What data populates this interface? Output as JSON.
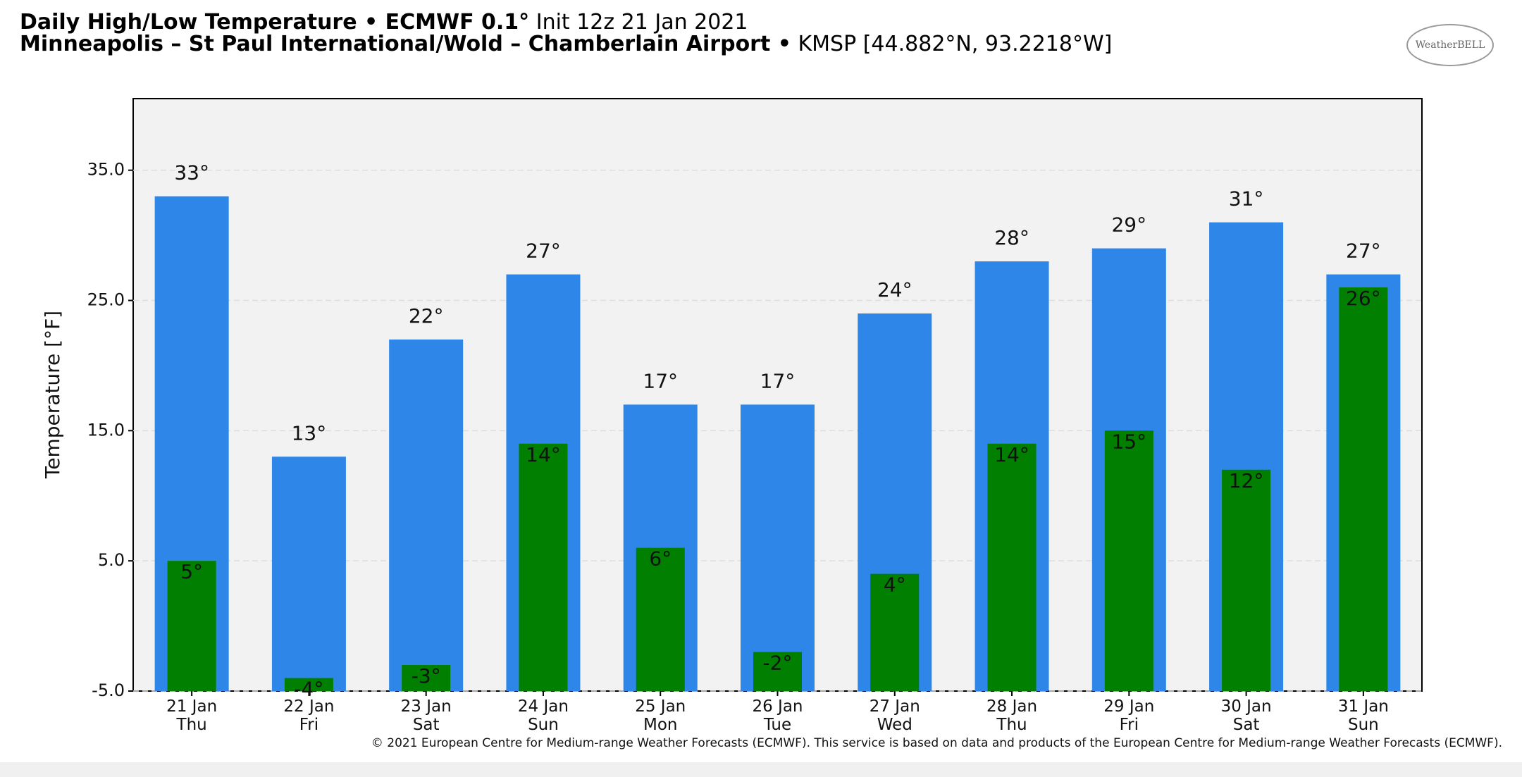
{
  "chart_data": {
    "type": "bar",
    "title": "Daily High/Low Temperature • ECMWF 0.1°",
    "init": "Init 12z 21 Jan 2021",
    "location": "Minneapolis – St Paul International/Wold – Chamberlain Airport •",
    "station": "KMSP [44.882°N, 93.2218°W]",
    "logo": "WeatherBELL",
    "ylabel": "Temperature [°F]",
    "copyright": "© 2021 European Centre for Medium-range Weather Forecasts (ECMWF). This service is based on data and products of the European Centre for Medium-range Weather Forecasts (ECMWF).",
    "categories": [
      "21 Jan\nThu",
      "22 Jan\nFri",
      "23 Jan\nSat",
      "24 Jan\nSun",
      "25 Jan\nMon",
      "26 Jan\nTue",
      "27 Jan\nWed",
      "28 Jan\nThu",
      "29 Jan\nFri",
      "30 Jan\nSat",
      "31 Jan\nSun"
    ],
    "series": [
      {
        "name": "High",
        "color": "#2e86e8",
        "values": [
          33,
          13,
          22,
          27,
          17,
          17,
          24,
          28,
          29,
          31,
          27
        ],
        "value_labels": [
          "33°",
          "13°",
          "22°",
          "27°",
          "17°",
          "17°",
          "24°",
          "28°",
          "29°",
          "31°",
          "27°"
        ]
      },
      {
        "name": "Low",
        "color": "#007f00",
        "values": [
          5,
          -4,
          -3,
          14,
          6,
          -2,
          4,
          14,
          15,
          12,
          26
        ],
        "value_labels": [
          "5°",
          "-4°",
          "-3°",
          "14°",
          "6°",
          "-2°",
          "4°",
          "14°",
          "15°",
          "12°",
          "26°"
        ]
      }
    ],
    "ylim": [
      -5,
      40.5
    ],
    "yticks": [
      {
        "value": -5,
        "label": "-5.0"
      },
      {
        "value": 5,
        "label": "5.0"
      },
      {
        "value": 15,
        "label": "15.0"
      },
      {
        "value": 25,
        "label": "25.0"
      },
      {
        "value": 35,
        "label": "35.0"
      }
    ],
    "grid": true
  }
}
